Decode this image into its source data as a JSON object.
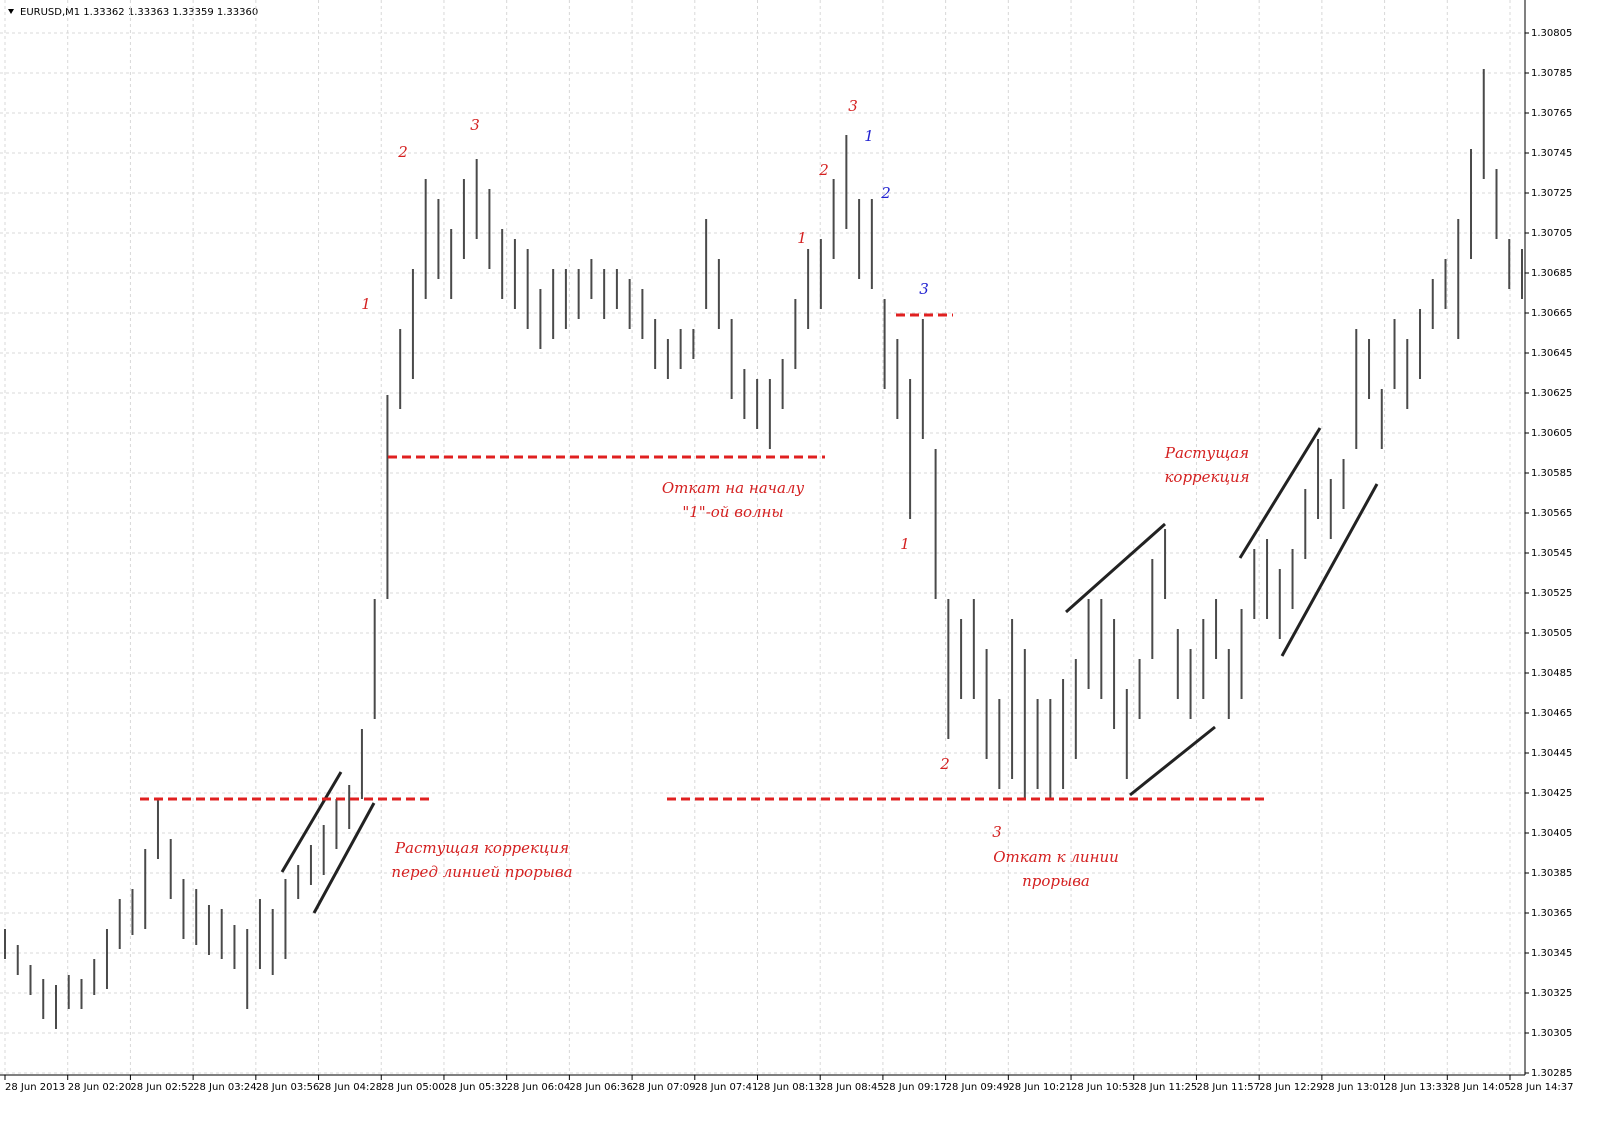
{
  "chart_data": {
    "type": "ohlc",
    "title": "EURUSD,M1  1.33362 1.33363 1.33359 1.33360",
    "color": "#4a4a4a",
    "grid": true,
    "ylim": [
      1.30284,
      1.308215
    ],
    "yticks": [
      1.30805,
      1.30785,
      1.30765,
      1.30745,
      1.30725,
      1.30705,
      1.30685,
      1.30665,
      1.30645,
      1.30625,
      1.30605,
      1.30585,
      1.30565,
      1.30545,
      1.30525,
      1.30505,
      1.30485,
      1.30465,
      1.30445,
      1.30425,
      1.30405,
      1.30385,
      1.30365,
      1.30345,
      1.30325,
      1.30305,
      1.30285
    ],
    "xticks": [
      "28 Jun 2013",
      "28 Jun 02:20",
      "28 Jun 02:52",
      "28 Jun 03:24",
      "28 Jun 03:56",
      "28 Jun 04:28",
      "28 Jun 05:00",
      "28 Jun 05:32",
      "28 Jun 06:04",
      "28 Jun 06:36",
      "28 Jun 07:09",
      "28 Jun 07:41",
      "28 Jun 08:13",
      "28 Jun 08:45",
      "28 Jun 09:17",
      "28 Jun 09:49",
      "28 Jun 10:21",
      "28 Jun 10:53",
      "28 Jun 11:25",
      "28 Jun 11:57",
      "28 Jun 12:29",
      "28 Jun 13:01",
      "28 Jun 13:33",
      "28 Jun 14:05",
      "28 Jun 14:37"
    ],
    "high": [
      1.30357,
      1.30349,
      1.30339,
      1.30332,
      1.30329,
      1.30334,
      1.30332,
      1.30342,
      1.30357,
      1.30372,
      1.30377,
      1.30397,
      1.30422,
      1.30402,
      1.30382,
      1.30377,
      1.30369,
      1.30367,
      1.30359,
      1.30357,
      1.30372,
      1.30367,
      1.30382,
      1.30389,
      1.30399,
      1.30409,
      1.30422,
      1.30429,
      1.30457,
      1.30522,
      1.30624,
      1.30657,
      1.30687,
      1.30732,
      1.30722,
      1.30707,
      1.30732,
      1.30742,
      1.30727,
      1.30707,
      1.30702,
      1.30697,
      1.30677,
      1.30687,
      1.30687,
      1.30687,
      1.30692,
      1.30687,
      1.30687,
      1.30682,
      1.30677,
      1.30662,
      1.30652,
      1.30657,
      1.30657,
      1.30712,
      1.30692,
      1.30662,
      1.30637,
      1.30632,
      1.30632,
      1.30642,
      1.30672,
      1.30697,
      1.30702,
      1.30732,
      1.30754,
      1.30722,
      1.30722,
      1.30672,
      1.30652,
      1.30632,
      1.30662,
      1.30597,
      1.30522,
      1.30512,
      1.30522,
      1.30497,
      1.30472,
      1.30512,
      1.30497,
      1.30472,
      1.30472,
      1.30482,
      1.30492,
      1.30522,
      1.30522,
      1.30512,
      1.30477,
      1.30492,
      1.30542,
      1.30557,
      1.30507,
      1.30497,
      1.30512,
      1.30522,
      1.30497,
      1.30517,
      1.30547,
      1.30552,
      1.30537,
      1.30547,
      1.30577,
      1.30602,
      1.30582,
      1.30592,
      1.30657,
      1.30652,
      1.30627,
      1.30662,
      1.30652,
      1.30667,
      1.30682,
      1.30692,
      1.30712,
      1.30747,
      1.30787,
      1.30737,
      1.30702,
      1.30697
    ],
    "low": [
      1.30342,
      1.30334,
      1.30324,
      1.30312,
      1.30307,
      1.30317,
      1.30317,
      1.30324,
      1.30327,
      1.30347,
      1.30354,
      1.30357,
      1.30392,
      1.30372,
      1.30352,
      1.30349,
      1.30344,
      1.30342,
      1.30337,
      1.30317,
      1.30337,
      1.30334,
      1.30342,
      1.30372,
      1.30379,
      1.30384,
      1.30397,
      1.30407,
      1.30422,
      1.30462,
      1.30522,
      1.30617,
      1.30632,
      1.30672,
      1.30682,
      1.30672,
      1.30692,
      1.30702,
      1.30687,
      1.30672,
      1.30667,
      1.30657,
      1.30647,
      1.30652,
      1.30657,
      1.30662,
      1.30672,
      1.30662,
      1.30667,
      1.30657,
      1.30652,
      1.30637,
      1.30632,
      1.30637,
      1.30642,
      1.30667,
      1.30657,
      1.30622,
      1.30612,
      1.30607,
      1.30597,
      1.30617,
      1.30637,
      1.30657,
      1.30667,
      1.30692,
      1.30707,
      1.30682,
      1.30677,
      1.30627,
      1.30612,
      1.30562,
      1.30602,
      1.30522,
      1.30452,
      1.30472,
      1.30472,
      1.30442,
      1.30427,
      1.30432,
      1.30422,
      1.30427,
      1.30422,
      1.30427,
      1.30442,
      1.30477,
      1.30472,
      1.30457,
      1.30432,
      1.30462,
      1.30492,
      1.30522,
      1.30472,
      1.30462,
      1.30472,
      1.30492,
      1.30462,
      1.30472,
      1.30512,
      1.30512,
      1.30502,
      1.30517,
      1.30542,
      1.30562,
      1.30552,
      1.30567,
      1.30597,
      1.30622,
      1.30597,
      1.30627,
      1.30617,
      1.30632,
      1.30657,
      1.30667,
      1.30652,
      1.30692,
      1.30732,
      1.30702,
      1.30677,
      1.30672
    ],
    "levels": [
      1.30422,
      1.30593,
      1.30664,
      1.30422
    ],
    "level_color": "#e02020",
    "annotations": [
      {
        "text": "1",
        "color": "#d42020"
      },
      {
        "text": "2",
        "color": "#d42020"
      },
      {
        "text": "3",
        "color": "#d42020"
      },
      {
        "text": "Откат на началу",
        "color": "#d42020"
      },
      {
        "text": "\"1\"-ой волны",
        "color": "#d42020"
      },
      {
        "text": "1",
        "color": "#d42020"
      },
      {
        "text": "2",
        "color": "#d42020"
      },
      {
        "text": "3",
        "color": "#d42020"
      },
      {
        "text": "1",
        "color": "#2020d0"
      },
      {
        "text": "2",
        "color": "#2020d0"
      },
      {
        "text": "3",
        "color": "#2020d0"
      },
      {
        "text": "1",
        "color": "#d42020"
      },
      {
        "text": "2",
        "color": "#d42020"
      },
      {
        "text": "3",
        "color": "#d42020"
      },
      {
        "text": "Откат к линии",
        "color": "#d42020"
      },
      {
        "text": "прорыва",
        "color": "#d42020"
      },
      {
        "text": "Растущая коррекция",
        "color": "#d42020"
      },
      {
        "text": "перед линией прорыва",
        "color": "#d42020"
      },
      {
        "text": "Растущая",
        "color": "#d42020"
      },
      {
        "text": "коррекция",
        "color": "#d42020"
      }
    ]
  }
}
